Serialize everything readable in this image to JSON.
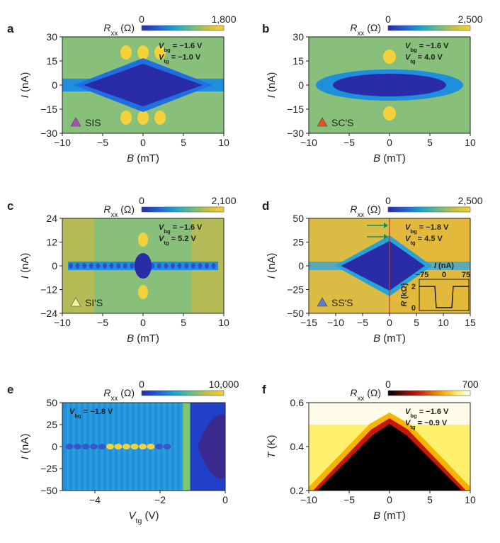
{
  "figure": "Six-panel colour-map figure of resistance R_xx versus current and magnetic field / gate voltage / temperature",
  "panels": [
    {
      "id": "a",
      "letter": "a",
      "colorbar": {
        "label": "R_xx (Ω)",
        "min_label": "0",
        "max_label": "1,800",
        "min": 0,
        "max": 1800,
        "cmap": "parula"
      },
      "xaxis": {
        "title_var": "B",
        "title_unit": " (mT)",
        "range": [
          -10,
          10
        ],
        "ticks": [
          "−10",
          "−5",
          "0",
          "5",
          "10"
        ],
        "tick_values": [
          -10,
          -5,
          0,
          5,
          10
        ]
      },
      "yaxis": {
        "title_var": "I",
        "title_unit": " (nA)",
        "range": [
          -30,
          30
        ],
        "ticks": [
          "30",
          "15",
          "0",
          "−15",
          "−30"
        ],
        "tick_values": [
          30,
          15,
          0,
          -15,
          -30
        ]
      },
      "annotations": [
        "V_bg = −1.6 V",
        "V_tg = −1.0 V"
      ],
      "tag": {
        "text": "SIS",
        "marker_color": "#b04cb8"
      },
      "pattern": "diamond"
    },
    {
      "id": "b",
      "letter": "b",
      "colorbar": {
        "label": "R_xx (Ω)",
        "min_label": "0",
        "max_label": "2,500",
        "min": 0,
        "max": 2500,
        "cmap": "parula"
      },
      "xaxis": {
        "title_var": "B",
        "title_unit": " (mT)",
        "range": [
          -10,
          10
        ],
        "ticks": [
          "−10",
          "−5",
          "0",
          "5",
          "10"
        ],
        "tick_values": [
          -10,
          -5,
          0,
          5,
          10
        ]
      },
      "yaxis": {
        "title_var": "I",
        "title_unit": " (nA)",
        "range": [
          -30,
          30
        ],
        "ticks": [
          "30",
          "15",
          "0",
          "−15",
          "−30"
        ],
        "tick_values": [
          30,
          15,
          0,
          -15,
          -30
        ]
      },
      "annotations": [
        "V_bg = −1.6 V",
        "V_tg = 4.0 V"
      ],
      "tag": {
        "text": "SC′S",
        "marker_color": "#e8501e"
      },
      "pattern": "lens"
    },
    {
      "id": "c",
      "letter": "c",
      "colorbar": {
        "label": "R_xx (Ω)",
        "min_label": "0",
        "max_label": "2,100",
        "min": 0,
        "max": 2100,
        "cmap": "parula"
      },
      "xaxis": {
        "title_var": "B",
        "title_unit": " (mT)",
        "range": [
          -10,
          10
        ],
        "ticks": [
          "−10",
          "−5",
          "0",
          "5",
          "10"
        ],
        "tick_values": [
          -10,
          -5,
          0,
          5,
          10
        ]
      },
      "yaxis": {
        "title_var": "I",
        "title_unit": " (nA)",
        "range": [
          -24,
          24
        ],
        "ticks": [
          "24",
          "12",
          "0",
          "−12",
          "−24"
        ],
        "tick_values": [
          24,
          12,
          0,
          -12,
          -24
        ]
      },
      "annotations": [
        "V_bg = −1.6 V",
        "V_tg = 5.2 V"
      ],
      "tag": {
        "text": "SI′S",
        "marker_color": "#f3f0a0"
      },
      "pattern": "narrow"
    },
    {
      "id": "d",
      "letter": "d",
      "colorbar": {
        "label": "R_xx (Ω)",
        "min_label": "0",
        "max_label": "2,500",
        "min": 0,
        "max": 2500,
        "cmap": "parula"
      },
      "xaxis": {
        "title_var": "B",
        "title_unit": " (mT)",
        "range": [
          -15,
          15
        ],
        "ticks": [
          "−15",
          "−10",
          "−5",
          "0",
          "5",
          "10",
          "15"
        ],
        "tick_values": [
          -15,
          -10,
          -5,
          0,
          5,
          10,
          15
        ]
      },
      "yaxis": {
        "title_var": "I",
        "title_unit": " (nA)",
        "range": [
          -50,
          50
        ],
        "ticks": [
          "50",
          "25",
          "0",
          "−25",
          "−50"
        ],
        "tick_values": [
          50,
          25,
          0,
          -25,
          -50
        ]
      },
      "annotations": [
        "V_bg = −1.8 V",
        "V_tg = 4.5 V"
      ],
      "tag": {
        "text": "SS′S",
        "marker_color": "#5b7bd0"
      },
      "pattern": "triangle",
      "inset": {
        "xlabel": "I (nA)",
        "xticks": [
          "−75",
          "0",
          "75"
        ],
        "ylabel": "R (kΩ)",
        "yticks": [
          "2",
          "0"
        ]
      }
    },
    {
      "id": "e",
      "letter": "e",
      "colorbar": {
        "label": "R_xx (Ω)",
        "min_label": "0",
        "max_label": "10,000",
        "min": 0,
        "max": 10000,
        "cmap": "parula"
      },
      "xaxis": {
        "title_var": "V",
        "title_sub": "tg",
        "title_unit": " (V)",
        "range": [
          -5,
          0
        ],
        "ticks": [
          "−4",
          "−2",
          "0"
        ],
        "tick_values": [
          -4,
          -2,
          0
        ]
      },
      "yaxis": {
        "title_var": "I",
        "title_unit": " (nA)",
        "range": [
          -50,
          50
        ],
        "ticks": [
          "50",
          "25",
          "0",
          "−25",
          "−50"
        ],
        "tick_values": [
          50,
          25,
          0,
          -25,
          -50
        ]
      },
      "annotations": [
        "V_bg = −1.8 V"
      ],
      "pattern": "gate"
    },
    {
      "id": "f",
      "letter": "f",
      "colorbar": {
        "label": "R_xx (Ω)",
        "min_label": "0",
        "max_label": "700",
        "min": 0,
        "max": 700,
        "cmap": "hot"
      },
      "xaxis": {
        "title_var": "B",
        "title_unit": " (mT)",
        "range": [
          -10,
          10
        ],
        "ticks": [
          "−10",
          "−5",
          "0",
          "5",
          "10"
        ],
        "tick_values": [
          -10,
          -5,
          0,
          5,
          10
        ]
      },
      "yaxis": {
        "title_var": "T",
        "title_unit": " (K)",
        "range": [
          0.2,
          0.6
        ],
        "ticks": [
          "0.6",
          "0.4",
          "0.2"
        ],
        "tick_values": [
          0.6,
          0.4,
          0.2
        ]
      },
      "annotations": [
        "V_bg = −1.6 V",
        "V_tg = −0.9 V"
      ],
      "pattern": "temperature"
    }
  ],
  "chart_data": [
    {
      "type": "heatmap",
      "title": "a",
      "xlabel": "B (mT)",
      "ylabel": "I (nA)",
      "xlim": [
        -10,
        10
      ],
      "ylim": [
        -30,
        30
      ],
      "zlabel": "R_xx (Ω)",
      "zlim": [
        0,
        1800
      ],
      "legend": "SIS"
    },
    {
      "type": "heatmap",
      "title": "b",
      "xlabel": "B (mT)",
      "ylabel": "I (nA)",
      "xlim": [
        -10,
        10
      ],
      "ylim": [
        -30,
        30
      ],
      "zlabel": "R_xx (Ω)",
      "zlim": [
        0,
        2500
      ],
      "legend": "SC′S"
    },
    {
      "type": "heatmap",
      "title": "c",
      "xlabel": "B (mT)",
      "ylabel": "I (nA)",
      "xlim": [
        -10,
        10
      ],
      "ylim": [
        -24,
        24
      ],
      "zlabel": "R_xx (Ω)",
      "zlim": [
        0,
        2100
      ],
      "legend": "SI′S"
    },
    {
      "type": "heatmap",
      "title": "d",
      "xlabel": "B (mT)",
      "ylabel": "I (nA)",
      "xlim": [
        -15,
        15
      ],
      "ylim": [
        -50,
        50
      ],
      "zlabel": "R_xx (Ω)",
      "zlim": [
        0,
        2500
      ],
      "legend": "SS′S"
    },
    {
      "type": "heatmap",
      "title": "e",
      "xlabel": "V_tg (V)",
      "ylabel": "I (nA)",
      "xlim": [
        -5,
        0
      ],
      "ylim": [
        -50,
        50
      ],
      "zlabel": "R_xx (Ω)",
      "zlim": [
        0,
        10000
      ]
    },
    {
      "type": "heatmap",
      "title": "f",
      "xlabel": "B (mT)",
      "ylabel": "T (K)",
      "xlim": [
        -10,
        10
      ],
      "ylim": [
        0.2,
        0.6
      ],
      "zlabel": "R_xx (Ω)",
      "zlim": [
        0,
        700
      ]
    }
  ]
}
